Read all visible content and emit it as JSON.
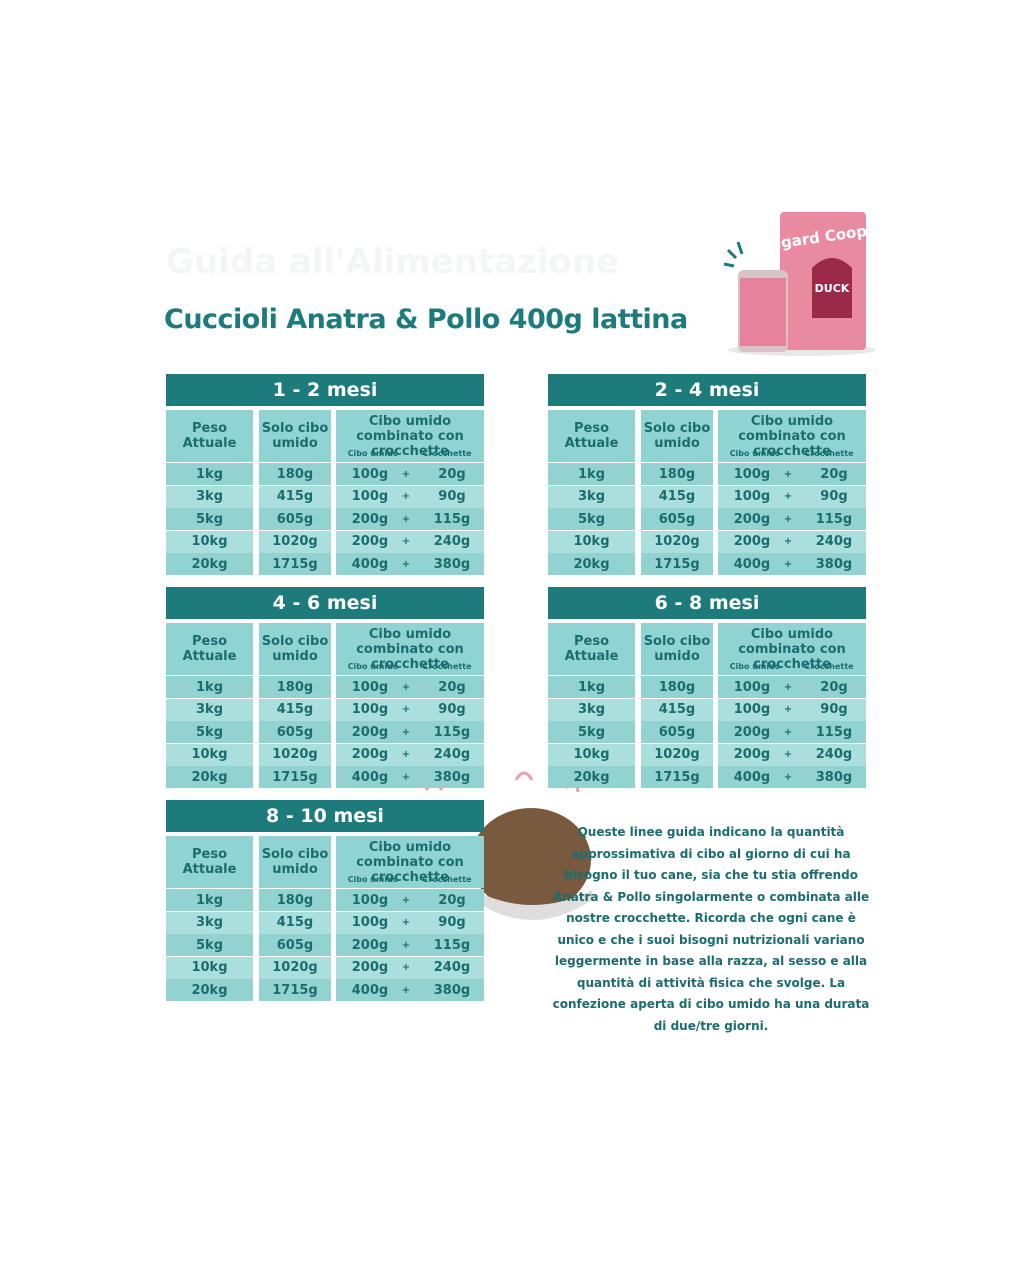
{
  "header": {
    "title": "Guida all'Alimentazione",
    "subtitle": "Cuccioli Anatra & Pollo 400g lattina"
  },
  "product": {
    "brand": "edgard Cooper",
    "flavor": "DUCK"
  },
  "tables": [
    {
      "title": "1 - 2 mesi",
      "headers": [
        "Peso Attuale",
        "Solo cibo umido",
        "Cibo umido combinato con crocchette"
      ],
      "subheaders": [
        "Cibo umido",
        "Crocchette"
      ],
      "rows": [
        [
          "1kg",
          "180g",
          "100g",
          "+",
          "20g"
        ],
        [
          "3kg",
          "415g",
          "100g",
          "+",
          "90g"
        ],
        [
          "5kg",
          "605g",
          "200g",
          "+",
          "115g"
        ],
        [
          "10kg",
          "1020g",
          "200g",
          "+",
          "240g"
        ],
        [
          "20kg",
          "1715g",
          "400g",
          "+",
          "380g"
        ]
      ]
    },
    {
      "title": "2 - 4 mesi",
      "headers": [
        "Peso Attuale",
        "Solo cibo umido",
        "Cibo umido combinato con crocchette"
      ],
      "subheaders": [
        "Cibo umido",
        "Crocchette"
      ],
      "rows": [
        [
          "1kg",
          "180g",
          "100g",
          "+",
          "20g"
        ],
        [
          "3kg",
          "415g",
          "100g",
          "+",
          "90g"
        ],
        [
          "5kg",
          "605g",
          "200g",
          "+",
          "115g"
        ],
        [
          "10kg",
          "1020g",
          "200g",
          "+",
          "240g"
        ],
        [
          "20kg",
          "1715g",
          "400g",
          "+",
          "380g"
        ]
      ]
    },
    {
      "title": "4 - 6 mesi",
      "headers": [
        "Peso Attuale",
        "Solo cibo umido",
        "Cibo umido combinato con crocchette"
      ],
      "subheaders": [
        "Cibo umido",
        "Crocchette"
      ],
      "rows": [
        [
          "1kg",
          "180g",
          "100g",
          "+",
          "20g"
        ],
        [
          "3kg",
          "415g",
          "100g",
          "+",
          "90g"
        ],
        [
          "5kg",
          "605g",
          "200g",
          "+",
          "115g"
        ],
        [
          "10kg",
          "1020g",
          "200g",
          "+",
          "240g"
        ],
        [
          "20kg",
          "1715g",
          "400g",
          "+",
          "380g"
        ]
      ]
    },
    {
      "title": "6 - 8 mesi",
      "headers": [
        "Peso Attuale",
        "Solo cibo umido",
        "Cibo umido combinato con crocchette"
      ],
      "subheaders": [
        "Cibo umido",
        "Crocchette"
      ],
      "rows": [
        [
          "1kg",
          "180g",
          "100g",
          "+",
          "20g"
        ],
        [
          "3kg",
          "415g",
          "100g",
          "+",
          "90g"
        ],
        [
          "5kg",
          "605g",
          "200g",
          "+",
          "115g"
        ],
        [
          "10kg",
          "1020g",
          "200g",
          "+",
          "240g"
        ],
        [
          "20kg",
          "1715g",
          "400g",
          "+",
          "380g"
        ]
      ]
    },
    {
      "title": "8 - 10 mesi",
      "headers": [
        "Peso Attuale",
        "Solo cibo umido",
        "Cibo umido combinato con crocchette"
      ],
      "subheaders": [
        "Cibo umido",
        "Crocchette"
      ],
      "rows": [
        [
          "1kg",
          "180g",
          "100g",
          "+",
          "20g"
        ],
        [
          "3kg",
          "415g",
          "100g",
          "+",
          "90g"
        ],
        [
          "5kg",
          "605g",
          "200g",
          "+",
          "115g"
        ],
        [
          "10kg",
          "1020g",
          "200g",
          "+",
          "240g"
        ],
        [
          "20kg",
          "1715g",
          "400g",
          "+",
          "380g"
        ]
      ]
    }
  ],
  "note": "Queste linee guida indicano la quantità approssimativa di cibo al giorno di cui ha bisogno il tuo cane, sia che tu stia offrendo Anatra & Pollo singolarmente o combinata alle nostre crocchette. Ricorda che ogni cane è unico e che i suoi bisogni nutrizionali variano leggermente in base alla razza, al sesso e alla quantità di attività fisica che svolge. La confezione aperta di cibo umido ha una durata di due/tre giorni."
}
